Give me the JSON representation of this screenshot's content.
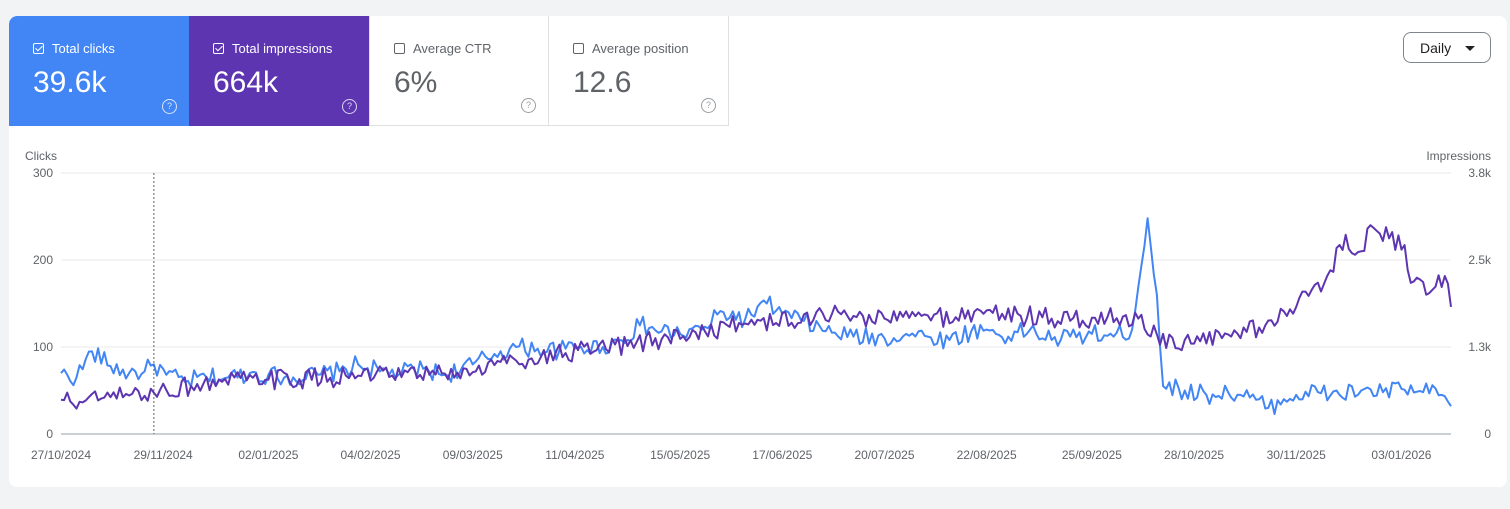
{
  "metrics": {
    "clicks": {
      "label": "Total clicks",
      "value": "39.6k",
      "checked": true,
      "color": "#4285f4"
    },
    "impressions": {
      "label": "Total impressions",
      "value": "664k",
      "checked": true,
      "color": "#5e35b1"
    },
    "ctr": {
      "label": "Average CTR",
      "value": "6%",
      "checked": false
    },
    "position": {
      "label": "Average position",
      "value": "12.6",
      "checked": false
    }
  },
  "help_glyph": "?",
  "granularity": {
    "label": "Daily"
  },
  "chart_data": {
    "type": "line",
    "y_left_label": "Clicks",
    "y_right_label": "Impressions",
    "y_left_ticks": [
      "0",
      "100",
      "200",
      "300"
    ],
    "y_right_ticks": [
      "0",
      "1.3k",
      "2.5k",
      "3.8k"
    ],
    "ylim_left": [
      0,
      300
    ],
    "ylim_right": [
      0,
      3800
    ],
    "x_tick_labels": [
      "27/10/2024",
      "29/11/2024",
      "02/01/2025",
      "04/02/2025",
      "09/03/2025",
      "11/04/2025",
      "15/05/2025",
      "17/06/2025",
      "20/07/2025",
      "22/08/2025",
      "25/09/2025",
      "28/10/2025",
      "30/11/2025",
      "03/01/2026"
    ],
    "x_range": [
      "27/10/2024",
      "19/01/2026"
    ],
    "marker_date": "26/11/2024",
    "grid": true,
    "series": [
      {
        "name": "Clicks",
        "axis": "left",
        "color": "#4285f4",
        "anchors": [
          [
            "27/10/2024",
            70
          ],
          [
            "01/11/2024",
            65
          ],
          [
            "06/11/2024",
            95
          ],
          [
            "12/11/2024",
            78
          ],
          [
            "18/11/2024",
            70
          ],
          [
            "23/11/2024",
            72
          ],
          [
            "26/11/2024",
            80
          ],
          [
            "30/11/2024",
            68
          ],
          [
            "06/12/2024",
            60
          ],
          [
            "13/12/2024",
            65
          ],
          [
            "20/12/2024",
            65
          ],
          [
            "27/12/2024",
            70
          ],
          [
            "02/01/2025",
            68
          ],
          [
            "10/01/2025",
            65
          ],
          [
            "18/01/2025",
            68
          ],
          [
            "25/01/2025",
            72
          ],
          [
            "31/01/2025",
            80
          ],
          [
            "07/02/2025",
            72
          ],
          [
            "14/02/2025",
            70
          ],
          [
            "21/02/2025",
            75
          ],
          [
            "28/02/2025",
            68
          ],
          [
            "09/03/2025",
            80
          ],
          [
            "16/03/2025",
            92
          ],
          [
            "23/03/2025",
            100
          ],
          [
            "30/03/2025",
            98
          ],
          [
            "06/04/2025",
            96
          ],
          [
            "13/04/2025",
            100
          ],
          [
            "20/04/2025",
            100
          ],
          [
            "26/04/2025",
            108
          ],
          [
            "02/05/2025",
            125
          ],
          [
            "09/05/2025",
            118
          ],
          [
            "15/05/2025",
            115
          ],
          [
            "22/05/2025",
            120
          ],
          [
            "29/05/2025",
            140
          ],
          [
            "05/06/2025",
            132
          ],
          [
            "12/06/2025",
            150
          ],
          [
            "17/06/2025",
            138
          ],
          [
            "24/06/2025",
            130
          ],
          [
            "01/07/2025",
            118
          ],
          [
            "10/07/2025",
            112
          ],
          [
            "20/07/2025",
            110
          ],
          [
            "27/07/2025",
            115
          ],
          [
            "03/08/2025",
            112
          ],
          [
            "10/08/2025",
            108
          ],
          [
            "17/08/2025",
            118
          ],
          [
            "22/08/2025",
            120
          ],
          [
            "29/08/2025",
            112
          ],
          [
            "05/09/2025",
            120
          ],
          [
            "12/09/2025",
            108
          ],
          [
            "18/09/2025",
            112
          ],
          [
            "25/09/2025",
            115
          ],
          [
            "02/10/2025",
            112
          ],
          [
            "08/10/2025",
            120
          ],
          [
            "13/10/2025",
            248
          ],
          [
            "16/10/2025",
            160
          ],
          [
            "18/10/2025",
            55
          ],
          [
            "25/10/2025",
            50
          ],
          [
            "01/11/2025",
            45
          ],
          [
            "08/11/2025",
            48
          ],
          [
            "15/11/2025",
            42
          ],
          [
            "21/11/2025",
            30
          ],
          [
            "26/11/2025",
            40
          ],
          [
            "30/11/2025",
            45
          ],
          [
            "07/12/2025",
            48
          ],
          [
            "14/12/2025",
            45
          ],
          [
            "21/12/2025",
            50
          ],
          [
            "28/12/2025",
            48
          ],
          [
            "03/01/2026",
            52
          ],
          [
            "10/01/2026",
            48
          ],
          [
            "16/01/2026",
            45
          ],
          [
            "19/01/2026",
            32
          ]
        ]
      },
      {
        "name": "Impressions",
        "axis": "right",
        "color": "#5e35b1",
        "anchors": [
          [
            "27/10/2024",
            500
          ],
          [
            "03/11/2024",
            460
          ],
          [
            "10/11/2024",
            530
          ],
          [
            "18/11/2024",
            560
          ],
          [
            "26/11/2024",
            600
          ],
          [
            "30/11/2024",
            640
          ],
          [
            "08/12/2024",
            700
          ],
          [
            "18/12/2024",
            760
          ],
          [
            "26/12/2024",
            780
          ],
          [
            "02/01/2025",
            790
          ],
          [
            "12/01/2025",
            800
          ],
          [
            "22/01/2025",
            820
          ],
          [
            "31/01/2025",
            850
          ],
          [
            "10/02/2025",
            830
          ],
          [
            "20/02/2025",
            860
          ],
          [
            "28/02/2025",
            880
          ],
          [
            "09/03/2025",
            900
          ],
          [
            "18/03/2025",
            1050
          ],
          [
            "28/03/2025",
            1100
          ],
          [
            "08/04/2025",
            1180
          ],
          [
            "18/04/2025",
            1220
          ],
          [
            "28/04/2025",
            1280
          ],
          [
            "09/05/2025",
            1380
          ],
          [
            "20/05/2025",
            1480
          ],
          [
            "31/05/2025",
            1560
          ],
          [
            "10/06/2025",
            1650
          ],
          [
            "20/06/2025",
            1620
          ],
          [
            "30/06/2025",
            1760
          ],
          [
            "10/07/2025",
            1720
          ],
          [
            "20/07/2025",
            1680
          ],
          [
            "01/08/2025",
            1720
          ],
          [
            "12/08/2025",
            1700
          ],
          [
            "22/08/2025",
            1800
          ],
          [
            "02/09/2025",
            1720
          ],
          [
            "12/09/2025",
            1680
          ],
          [
            "22/09/2025",
            1650
          ],
          [
            "30/09/2025",
            1700
          ],
          [
            "10/10/2025",
            1680
          ],
          [
            "16/10/2025",
            1450
          ],
          [
            "22/10/2025",
            1250
          ],
          [
            "30/10/2025",
            1350
          ],
          [
            "08/11/2025",
            1450
          ],
          [
            "18/11/2025",
            1550
          ],
          [
            "30/11/2025",
            1850
          ],
          [
            "10/12/2025",
            2300
          ],
          [
            "16/12/2025",
            2900
          ],
          [
            "20/12/2025",
            2650
          ],
          [
            "25/12/2025",
            3000
          ],
          [
            "30/12/2025",
            2850
          ],
          [
            "04/01/2026",
            2750
          ],
          [
            "06/01/2026",
            2200
          ],
          [
            "09/01/2026",
            2250
          ],
          [
            "13/01/2026",
            2100
          ],
          [
            "17/01/2026",
            2300
          ],
          [
            "19/01/2026",
            1850
          ]
        ]
      }
    ]
  }
}
